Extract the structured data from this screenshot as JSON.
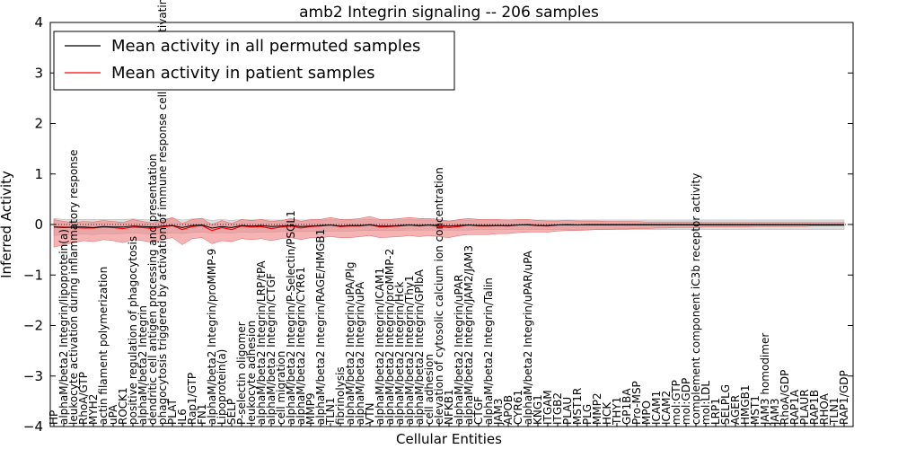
{
  "chart_data": {
    "type": "line",
    "title": "amb2 Integrin signaling -- 206 samples",
    "xlabel": "Cellular Entities",
    "ylabel": "Inferred Activity",
    "ylim": [
      -4,
      4
    ],
    "yticks": [
      "−4",
      "−3",
      "−2",
      "−1",
      "0",
      "1",
      "2",
      "3",
      "4"
    ],
    "grid": false,
    "legend_position": "top-left",
    "colors": {
      "permuted": "#000000",
      "patient": "#ff0000",
      "patient_band": "#f08080",
      "permuted_band": "#c8c8c8"
    },
    "categories": [
      "HP",
      "alphaM/beta2 Integrin/lipoprotein(a)",
      "leukocyte activation during inflammatory response",
      "RhoA/GTP",
      "MYH2",
      "actin filament polymerization",
      "uPA",
      "ROCK1",
      "positive regulation of phagocytosis",
      "alphaM/beta2 Integrin",
      "dendritic cell antigen processing and presentation",
      "phagocytosis triggered by activation of immune response cell surface activating receptor",
      "PLAT",
      "IL6",
      "Rap1/GTP",
      "FN1",
      "alphaM/beta2 Integrin/proMMP-9",
      "Lipoprotein(a)",
      "SELP",
      "P-selectin oligomer",
      "leukocyte adhesion",
      "alphaM/beta2 Integrin/LRP/tPA",
      "alphaM/beta2 Integrin/CTGF",
      "cell migration",
      "alphaM/beta2 Integrin/P-Selectin/PSGL1",
      "alphaM/beta2 Integrin/CYR61",
      "MMP9",
      "alphaM/beta2 Integrin/RAGE/HMGB1",
      "TLN1",
      "fibrinolysis",
      "alphaM/beta2 Integrin/uPA/Plg",
      "alphaM/beta2 Integrin/uPA",
      "VTN",
      "alphaM/beta2 Integrin/ICAM1",
      "alphaM/beta2 Integrin/proMMP-2",
      "alphaM/beta2 Integrin/Hck",
      "alphaM/beta2 Integrin/Thy1",
      "alphaM/beta2 Integrin/GPIbA",
      "cell adhesion",
      "elevation of cytosolic calcium ion concentration",
      "NFKB1",
      "alphaM/beta2 Integrin/uPAR",
      "alphaM/beta2 Integrin/JAM2/JAM3",
      "CTGF",
      "alphaM/beta2 Integrin/Talin",
      "JAM3",
      "APOB",
      "CYR61",
      "alphaM/beta2 Integrin/uPAR/uPA",
      "KNG1",
      "ITGAM",
      "ITGB2",
      "PLAU",
      "MST1R",
      "PLG",
      "MMP2",
      "HCK",
      "THY1",
      "GP1BA",
      "Pro-MSP",
      "MPO",
      "ICAM1",
      "ICAM2",
      "mol:GTP",
      "mol:GDP",
      "complement component iC3b receptor activity",
      "mol:LDL",
      "LRP1",
      "SELPLG",
      "AGER",
      "HMGB1",
      "MST1",
      "JAM3 homodimer",
      "JAM3",
      "RhoA/GDP",
      "RAP1A",
      "PLAUR",
      "RAP1B",
      "RHOA",
      "TLN1",
      "RAP1/GDP"
    ],
    "series": [
      {
        "name": "Mean activity in all permuted samples",
        "values": [
          -0.05,
          -0.06,
          -0.05,
          -0.05,
          -0.06,
          -0.04,
          -0.05,
          -0.05,
          -0.03,
          -0.04,
          -0.05,
          -0.03,
          -0.02,
          -0.06,
          -0.02,
          -0.01,
          -0.07,
          -0.04,
          -0.06,
          -0.02,
          -0.03,
          -0.02,
          -0.04,
          -0.03,
          -0.02,
          -0.04,
          -0.03,
          -0.02,
          -0.01,
          -0.03,
          -0.02,
          -0.02,
          -0.01,
          -0.03,
          -0.03,
          -0.02,
          -0.01,
          -0.02,
          -0.01,
          -0.02,
          -0.03,
          -0.02,
          -0.01,
          -0.02,
          -0.02,
          -0.02,
          -0.02,
          -0.01,
          -0.01,
          -0.02,
          -0.02,
          -0.01,
          -0.01,
          -0.01,
          -0.01,
          -0.01,
          -0.01,
          -0.01,
          -0.01,
          -0.01,
          -0.01,
          -0.01,
          -0.01,
          -0.01,
          -0.01,
          -0.01,
          -0.01,
          -0.01,
          -0.01,
          -0.01,
          -0.01,
          -0.01,
          -0.01,
          -0.01,
          -0.01,
          -0.01,
          -0.01,
          -0.01,
          -0.01,
          -0.01,
          -0.01
        ],
        "lower": [
          -0.22,
          -0.2,
          -0.2,
          -0.19,
          -0.2,
          -0.18,
          -0.19,
          -0.18,
          -0.17,
          -0.18,
          -0.19,
          -0.18,
          -0.17,
          -0.18,
          -0.16,
          -0.15,
          -0.17,
          -0.16,
          -0.17,
          -0.15,
          -0.16,
          -0.15,
          -0.15,
          -0.14,
          -0.14,
          -0.14,
          -0.14,
          -0.13,
          -0.13,
          -0.13,
          -0.13,
          -0.12,
          -0.12,
          -0.12,
          -0.12,
          -0.12,
          -0.11,
          -0.11,
          -0.11,
          -0.11,
          -0.11,
          -0.11,
          -0.11,
          -0.1,
          -0.1,
          -0.1,
          -0.1,
          -0.1,
          -0.1,
          -0.1,
          -0.1,
          -0.1,
          -0.1,
          -0.1,
          -0.1,
          -0.1,
          -0.1,
          -0.1,
          -0.1,
          -0.1,
          -0.1,
          -0.1,
          -0.1,
          -0.1,
          -0.1,
          -0.1,
          -0.1,
          -0.1,
          -0.1,
          -0.1,
          -0.1,
          -0.1,
          -0.1,
          -0.1,
          -0.1,
          -0.1,
          -0.1,
          -0.1,
          -0.1,
          -0.1,
          -0.1
        ],
        "upper": [
          0.12,
          0.1,
          0.1,
          0.1,
          0.1,
          0.1,
          0.1,
          0.1,
          0.11,
          0.1,
          0.09,
          0.11,
          0.12,
          0.09,
          0.11,
          0.12,
          0.08,
          0.1,
          0.08,
          0.1,
          0.09,
          0.1,
          0.09,
          0.09,
          0.1,
          0.09,
          0.09,
          0.09,
          0.1,
          0.09,
          0.09,
          0.09,
          0.1,
          0.09,
          0.09,
          0.09,
          0.1,
          0.09,
          0.09,
          0.09,
          0.08,
          0.09,
          0.09,
          0.09,
          0.09,
          0.09,
          0.09,
          0.09,
          0.09,
          0.09,
          0.09,
          0.09,
          0.09,
          0.09,
          0.09,
          0.09,
          0.09,
          0.09,
          0.09,
          0.09,
          0.09,
          0.09,
          0.09,
          0.09,
          0.09,
          0.09,
          0.09,
          0.09,
          0.09,
          0.09,
          0.09,
          0.09,
          0.09,
          0.09,
          0.09,
          0.09,
          0.09,
          0.09,
          0.09,
          0.09,
          0.09
        ]
      },
      {
        "name": "Mean activity in patient samples",
        "values": [
          -0.05,
          -0.05,
          -0.06,
          -0.07,
          -0.07,
          -0.05,
          -0.06,
          -0.08,
          -0.05,
          -0.06,
          -0.08,
          -0.05,
          -0.02,
          -0.1,
          -0.04,
          -0.02,
          -0.12,
          -0.06,
          -0.1,
          -0.03,
          -0.05,
          -0.04,
          -0.08,
          -0.05,
          -0.03,
          -0.07,
          -0.04,
          -0.03,
          -0.01,
          -0.04,
          -0.03,
          -0.03,
          0.0,
          -0.05,
          -0.04,
          -0.03,
          -0.01,
          -0.03,
          -0.01,
          -0.04,
          -0.06,
          -0.04,
          -0.01,
          -0.03,
          -0.03,
          -0.02,
          -0.03,
          -0.01,
          0.0,
          -0.02,
          -0.03,
          -0.01,
          0.0,
          -0.01,
          0.0,
          0.0,
          0.0,
          0.0,
          0.0,
          0.0,
          0.0,
          0.0,
          0.0,
          0.0,
          0.0,
          0.0,
          0.0,
          0.0,
          0.0,
          0.0,
          0.0,
          0.0,
          0.0,
          0.0,
          0.0,
          0.0,
          0.0,
          0.0,
          0.0,
          0.0,
          0.0
        ],
        "lower": [
          -0.45,
          -0.4,
          -0.36,
          -0.32,
          -0.34,
          -0.3,
          -0.32,
          -0.36,
          -0.3,
          -0.32,
          -0.36,
          -0.3,
          -0.26,
          -0.4,
          -0.28,
          -0.26,
          -0.38,
          -0.32,
          -0.34,
          -0.28,
          -0.3,
          -0.28,
          -0.32,
          -0.28,
          -0.26,
          -0.3,
          -0.26,
          -0.26,
          -0.24,
          -0.26,
          -0.26,
          -0.24,
          -0.22,
          -0.26,
          -0.25,
          -0.24,
          -0.22,
          -0.24,
          -0.22,
          -0.24,
          -0.26,
          -0.22,
          -0.2,
          -0.2,
          -0.2,
          -0.18,
          -0.18,
          -0.16,
          -0.15,
          -0.15,
          -0.15,
          -0.13,
          -0.12,
          -0.12,
          -0.11,
          -0.1,
          -0.1,
          -0.09,
          -0.09,
          -0.08,
          -0.08,
          -0.07,
          -0.07,
          -0.06,
          -0.06,
          -0.06,
          -0.05,
          -0.05,
          -0.05,
          -0.05,
          -0.05,
          -0.04,
          -0.04,
          -0.04,
          -0.04,
          -0.04,
          -0.04,
          -0.03,
          -0.03,
          -0.03,
          -0.03
        ],
        "upper": [
          0.1,
          0.06,
          0.04,
          0.06,
          0.05,
          0.08,
          0.06,
          0.04,
          0.1,
          0.06,
          0.03,
          0.08,
          0.14,
          0.02,
          0.1,
          0.12,
          0.0,
          0.08,
          0.02,
          0.1,
          0.08,
          0.1,
          0.06,
          0.08,
          0.12,
          0.06,
          0.1,
          0.1,
          0.14,
          0.1,
          0.1,
          0.12,
          0.16,
          0.1,
          0.1,
          0.12,
          0.14,
          0.12,
          0.12,
          0.1,
          0.06,
          0.1,
          0.12,
          0.1,
          0.1,
          0.1,
          0.09,
          0.1,
          0.1,
          0.08,
          0.07,
          0.07,
          0.08,
          0.07,
          0.07,
          0.07,
          0.06,
          0.06,
          0.06,
          0.06,
          0.05,
          0.05,
          0.05,
          0.05,
          0.05,
          0.05,
          0.04,
          0.04,
          0.04,
          0.04,
          0.04,
          0.04,
          0.04,
          0.04,
          0.04,
          0.04,
          0.04,
          0.04,
          0.04,
          0.04,
          0.04
        ]
      }
    ]
  }
}
